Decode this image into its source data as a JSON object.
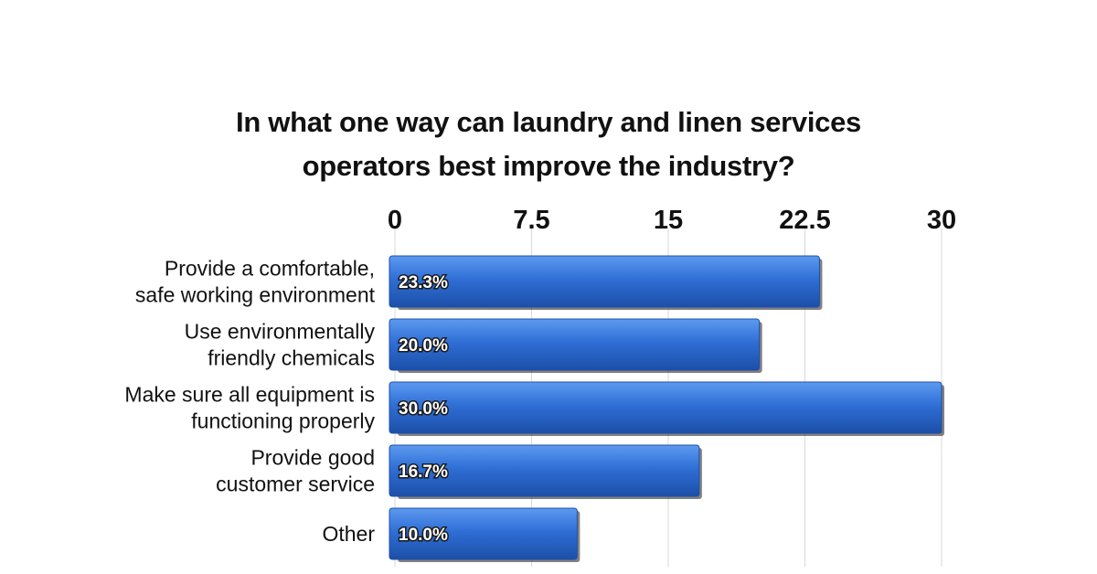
{
  "chart_data": {
    "type": "bar",
    "orientation": "horizontal",
    "title_lines": [
      "In what one way can laundry and linen services",
      "operators best improve the industry?"
    ],
    "categories": [
      [
        "Provide a comfortable,",
        "safe working environment"
      ],
      [
        "Use environmentally",
        "friendly chemicals"
      ],
      [
        "Make sure all equipment is",
        "functioning properly"
      ],
      [
        "Provide good",
        "customer service"
      ],
      [
        "Other"
      ]
    ],
    "values": [
      23.3,
      20.0,
      30.0,
      16.7,
      10.0
    ],
    "data_labels": [
      "23.3%",
      "20.0%",
      "30.0%",
      "16.7%",
      "10.0%"
    ],
    "xticks": [
      0,
      7.5,
      15,
      22.5,
      30
    ],
    "xtick_labels": [
      "0",
      "7.5",
      "15",
      "22.5",
      "30"
    ],
    "xlim": [
      0,
      30
    ],
    "xaxis_position": "top",
    "grid": true,
    "legend": "none",
    "colors": {
      "bar": "#2f6fd6",
      "bar_light": "#5d9af0",
      "bar_dark": "#1c4fa8",
      "grid": "#d9d9d9"
    }
  }
}
